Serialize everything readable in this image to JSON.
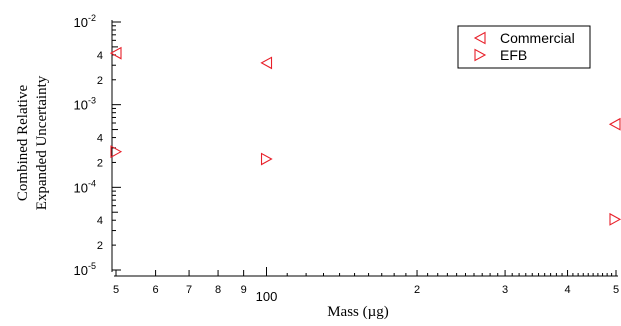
{
  "chart_data": {
    "type": "scatter",
    "title": "",
    "xlabel": "Mass (µg)",
    "ylabel": [
      "Combined Relative",
      "Expanded Uncertainty"
    ],
    "x_scale": "log",
    "y_scale": "log",
    "xlim": [
      50,
      500
    ],
    "ylim": [
      1e-05,
      0.01
    ],
    "x_ticks": [
      {
        "value": 50,
        "label": "5"
      },
      {
        "value": 60,
        "label": "6"
      },
      {
        "value": 70,
        "label": "7"
      },
      {
        "value": 80,
        "label": "8"
      },
      {
        "value": 90,
        "label": "9"
      },
      {
        "value": 100,
        "label": "100",
        "major": true
      },
      {
        "value": 200,
        "label": "2"
      },
      {
        "value": 300,
        "label": "3"
      },
      {
        "value": 400,
        "label": "4"
      },
      {
        "value": 500,
        "label": "5"
      }
    ],
    "y_decades": [
      {
        "value": 0.01,
        "base": "10",
        "exp": "-2"
      },
      {
        "value": 0.001,
        "base": "10",
        "exp": "-3"
      },
      {
        "value": 0.0001,
        "base": "10",
        "exp": "-4"
      },
      {
        "value": 1e-05,
        "base": "10",
        "exp": "-5"
      }
    ],
    "y_minor_labeled": [
      {
        "value": 0.004,
        "label": "4"
      },
      {
        "value": 0.002,
        "label": "2"
      },
      {
        "value": 0.0004,
        "label": "4"
      },
      {
        "value": 0.0002,
        "label": "2"
      },
      {
        "value": 4e-05,
        "label": "4"
      },
      {
        "value": 2e-05,
        "label": "2"
      }
    ],
    "legend_position": "top-right",
    "series": [
      {
        "name": "Commercial",
        "marker": "triangle-left",
        "color": "#e8202a",
        "points": [
          {
            "x": 50,
            "y": 0.0042
          },
          {
            "x": 100,
            "y": 0.0032
          },
          {
            "x": 500,
            "y": 0.00058
          }
        ]
      },
      {
        "name": "EFB",
        "marker": "triangle-right",
        "color": "#e8202a",
        "points": [
          {
            "x": 50,
            "y": 0.00027
          },
          {
            "x": 100,
            "y": 0.00022
          },
          {
            "x": 500,
            "y": 4.1e-05
          }
        ]
      }
    ]
  }
}
